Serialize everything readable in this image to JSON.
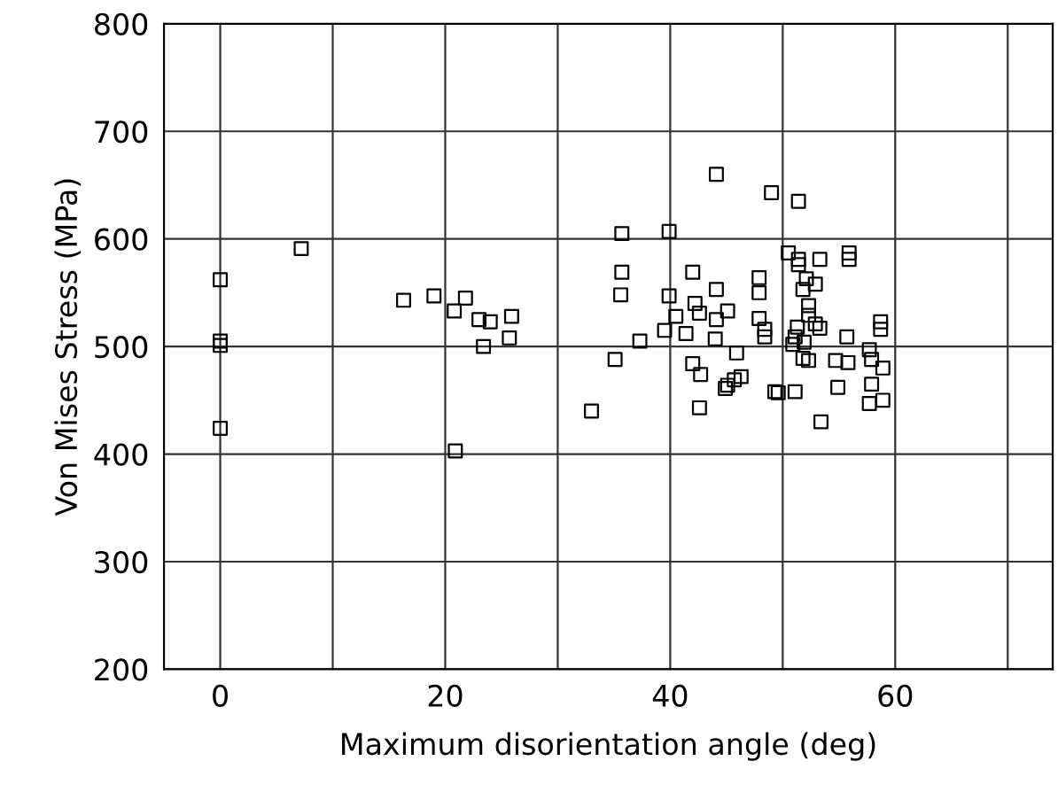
{
  "chart_data": {
    "type": "scatter",
    "xlabel": "Maximum disorientation angle (deg)",
    "ylabel": "Von Mises Stress (MPa)",
    "xlim": [
      -5,
      74
    ],
    "ylim": [
      200,
      800
    ],
    "xticks": [
      0,
      {
        "value": 10,
        "label": null
      },
      20,
      {
        "value": 30,
        "label": null
      },
      40,
      {
        "value": 50,
        "label": null
      },
      60,
      {
        "value": 70,
        "label": null
      }
    ],
    "yticks": [
      200,
      300,
      400,
      500,
      600,
      700,
      800
    ],
    "grid": true,
    "marker": "square",
    "series": [
      {
        "color": "#000000",
        "x": [
          7.2,
          0,
          0,
          0,
          0,
          16.3,
          19.0,
          20.8,
          21.8,
          23.0,
          23.4,
          20.9,
          24.0,
          25.9,
          25.7,
          35.7,
          35.7,
          35.6,
          37.3,
          35.1,
          33.0,
          39.9,
          44.1,
          49.0,
          42.0,
          39.9,
          44.1,
          42.2,
          42.6,
          40.5,
          39.5,
          41.4,
          45.1,
          44.1,
          44.0,
          45.9,
          42.0,
          42.7,
          46.3,
          45.7,
          45.1,
          44.9,
          42.6,
          47.9,
          47.9,
          47.9,
          48.4,
          48.4,
          49.3,
          51.4,
          50.5,
          51.4,
          51.4,
          53.3,
          55.9,
          55.9,
          52.1,
          51.8,
          52.9,
          52.3,
          52.3,
          52.9,
          53.3,
          51.3,
          51.1,
          50.9,
          51.9,
          55.7,
          58.7,
          58.7,
          51.8,
          52.3,
          54.7,
          55.8,
          57.7,
          57.9,
          58.9,
          49.6,
          51.1,
          54.9,
          57.9,
          57.7,
          58.9,
          53.4
        ],
        "values": [
          591,
          562,
          501,
          505,
          424,
          543,
          547,
          533,
          545,
          525,
          500,
          403,
          523,
          528,
          508,
          605,
          569,
          548,
          505,
          488,
          440,
          607,
          660,
          643,
          569,
          547,
          553,
          540,
          531,
          528,
          515,
          512,
          533,
          525,
          507,
          494,
          484,
          474,
          472,
          469,
          464,
          461,
          443,
          564,
          550,
          526,
          516,
          509,
          458,
          635,
          587,
          581,
          576,
          581,
          587,
          581,
          563,
          553,
          558,
          538,
          529,
          521,
          517,
          518,
          509,
          502,
          504,
          509,
          523,
          516,
          489,
          487,
          487,
          485,
          497,
          488,
          480,
          457,
          458,
          462,
          465,
          447,
          450,
          430
        ]
      }
    ]
  }
}
